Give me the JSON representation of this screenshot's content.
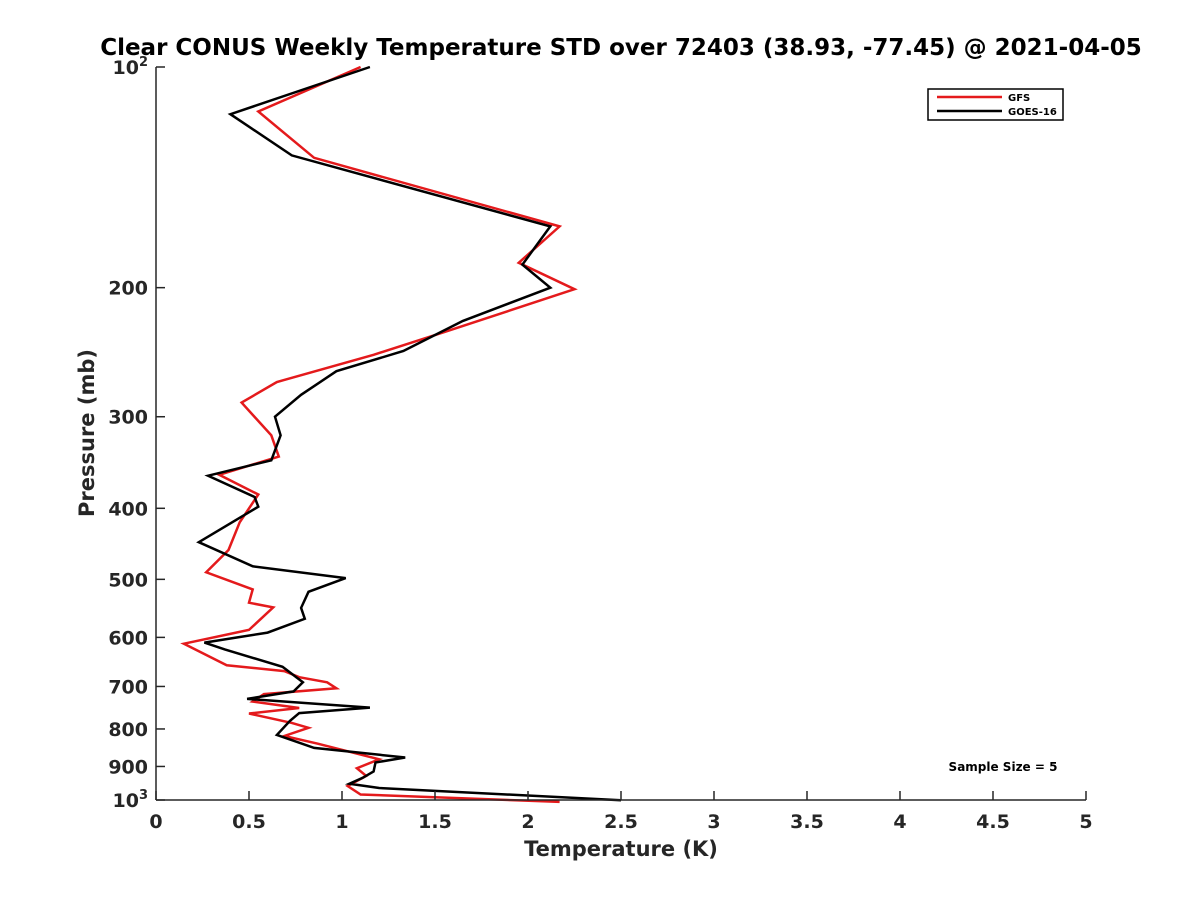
{
  "chart_data": {
    "type": "line",
    "title": "Clear CONUS Weekly Temperature STD over 72403 (38.93, -77.45) @ 2021-04-05",
    "xlabel": "Temperature (K)",
    "ylabel": "Pressure (mb)",
    "xlim": [
      0,
      5
    ],
    "ylim": [
      100,
      1000
    ],
    "y_scale": "log",
    "y_reversed": true,
    "grid": false,
    "legend_position": "top-right",
    "colors": {
      "GFS": "#e41a1c",
      "GOES-16": "#000000"
    },
    "x_ticks": [
      "0",
      "0.5",
      "1",
      "1.5",
      "2",
      "2.5",
      "3",
      "3.5",
      "4",
      "4.5",
      "5"
    ],
    "y_ticks": [
      {
        "value": 100,
        "base": "10",
        "exp": "2"
      },
      {
        "value": 200,
        "text": "200"
      },
      {
        "value": 300,
        "text": "300"
      },
      {
        "value": 400,
        "text": "400"
      },
      {
        "value": 500,
        "text": "500"
      },
      {
        "value": 600,
        "text": "600"
      },
      {
        "value": 700,
        "text": "700"
      },
      {
        "value": 800,
        "text": "800"
      },
      {
        "value": 900,
        "text": "900"
      },
      {
        "value": 1000,
        "base": "10",
        "exp": "3"
      }
    ],
    "series": [
      {
        "name": "GFS",
        "color": "#e41a1c",
        "x": [
          1.1,
          0.55,
          0.85,
          2.17,
          1.95,
          2.25,
          1.55,
          1.17,
          0.65,
          0.46,
          0.62,
          0.66,
          0.34,
          0.55,
          0.45,
          0.39,
          0.27,
          0.52,
          0.5,
          0.63,
          0.5,
          0.15,
          0.38,
          0.69,
          0.77,
          0.92,
          0.97,
          0.58,
          0.52,
          0.77,
          0.5,
          0.73,
          0.82,
          0.69,
          0.87,
          1.2,
          1.08,
          1.13,
          1.03,
          1.1,
          2.17
        ],
        "y": [
          100,
          115,
          133,
          165,
          185,
          201,
          230,
          247,
          269,
          287,
          318,
          340,
          360,
          383,
          418,
          456,
          489,
          516,
          538,
          546,
          586,
          612,
          655,
          667,
          680,
          691,
          704,
          717,
          734,
          749,
          762,
          785,
          797,
          818,
          838,
          880,
          905,
          927,
          957,
          983,
          1006
        ]
      },
      {
        "name": "GOES-16",
        "color": "#000000",
        "x": [
          1.15,
          0.4,
          0.73,
          2.12,
          1.97,
          2.12,
          1.65,
          1.33,
          0.97,
          0.78,
          0.64,
          0.67,
          0.62,
          0.28,
          0.53,
          0.55,
          0.23,
          0.52,
          1.02,
          0.82,
          0.78,
          0.8,
          0.6,
          0.26,
          0.37,
          0.68,
          0.79,
          0.74,
          0.49,
          1.15,
          0.77,
          0.72,
          0.65,
          0.85,
          1.34,
          1.18,
          1.17,
          1.11,
          1.04,
          1.2,
          2.5
        ],
        "y": [
          100,
          116,
          132,
          165,
          186,
          200,
          222,
          244,
          260,
          280,
          300,
          318,
          344,
          361,
          386,
          398,
          445,
          480,
          498,
          520,
          547,
          566,
          591,
          610,
          623,
          658,
          691,
          711,
          728,
          748,
          761,
          780,
          815,
          849,
          875,
          889,
          914,
          933,
          950,
          963,
          1001
        ]
      }
    ],
    "annotations": [
      "Sample Size = 5"
    ]
  }
}
